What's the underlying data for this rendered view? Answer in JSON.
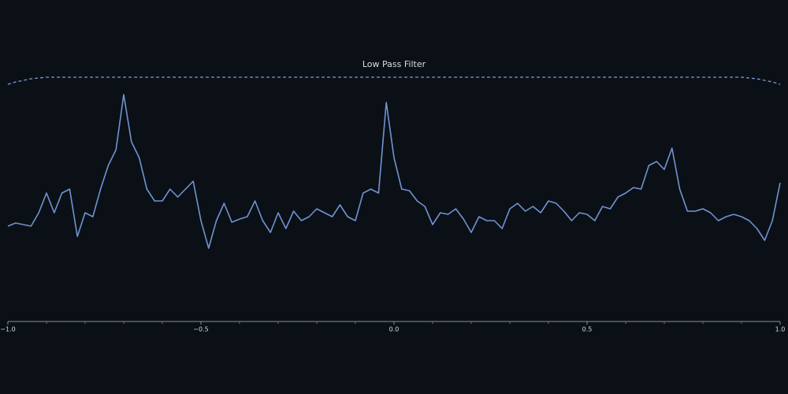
{
  "chart_data": {
    "type": "line",
    "title": "Low Pass Filter",
    "x": [
      -1,
      -0.98,
      -0.96,
      -0.94,
      -0.92,
      -0.9,
      -0.88,
      -0.86,
      -0.84,
      -0.82,
      -0.8,
      -0.78,
      -0.76,
      -0.74,
      -0.72,
      -0.7,
      -0.68,
      -0.66,
      -0.64,
      -0.62,
      -0.6,
      -0.58,
      -0.56,
      -0.54,
      -0.52,
      -0.5,
      -0.48,
      -0.46,
      -0.44,
      -0.42,
      -0.4,
      -0.38,
      -0.36,
      -0.34,
      -0.32,
      -0.3,
      -0.28,
      -0.26,
      -0.24,
      -0.22,
      -0.2,
      -0.18,
      -0.16,
      -0.14,
      -0.12,
      -0.1,
      -0.08,
      -0.06,
      -0.04,
      -0.02,
      0,
      0.02,
      0.04,
      0.06,
      0.08,
      0.1,
      0.12,
      0.14,
      0.16,
      0.18,
      0.2,
      0.22,
      0.24,
      0.26,
      0.28,
      0.3,
      0.32,
      0.34,
      0.36,
      0.38,
      0.4,
      0.42,
      0.44,
      0.46,
      0.48,
      0.5,
      0.52,
      0.54,
      0.56,
      0.58,
      0.6,
      0.62,
      0.64,
      0.66,
      0.68,
      0.7,
      0.72,
      0.74,
      0.76,
      0.78,
      0.8,
      0.82,
      0.84,
      0.86,
      0.88,
      0.9,
      0.92,
      0.94,
      0.96,
      0.98,
      1
    ],
    "series": [
      {
        "color": "#6f93d0",
        "dashed": false,
        "values": [
          121,
          125,
          123,
          121,
          138,
          163,
          138,
          163,
          168,
          108,
          138,
          133,
          168,
          198,
          218,
          288,
          228,
          208,
          168,
          153,
          153,
          168,
          158,
          168,
          178,
          128,
          93,
          128,
          150,
          126,
          130,
          133,
          153,
          128,
          113,
          138,
          118,
          140,
          128,
          133,
          143,
          138,
          133,
          148,
          133,
          128,
          163,
          168,
          163,
          278,
          208,
          168,
          166,
          153,
          146,
          123,
          138,
          136,
          143,
          130,
          113,
          133,
          128,
          128,
          118,
          143,
          150,
          140,
          146,
          138,
          153,
          150,
          140,
          128,
          138,
          136,
          128,
          146,
          143,
          158,
          163,
          170,
          168,
          198,
          203,
          193,
          220,
          168,
          140,
          140,
          143,
          138,
          128,
          133,
          136,
          133,
          128,
          118,
          103,
          128,
          176
        ]
      },
      {
        "color": "#7a9ad6",
        "dashed": true,
        "values": [
          301,
          304,
          306,
          308,
          309,
          310,
          310,
          310,
          310,
          310,
          310,
          310,
          310,
          310,
          310,
          310,
          310,
          310,
          310,
          310,
          310,
          310,
          310,
          310,
          310,
          310,
          310,
          310,
          310,
          310,
          310,
          310,
          310,
          310,
          310,
          310,
          310,
          310,
          310,
          310,
          310,
          310,
          310,
          310,
          310,
          310,
          310,
          310,
          310,
          310,
          310,
          310,
          310,
          310,
          310,
          310,
          310,
          310,
          310,
          310,
          310,
          310,
          310,
          310,
          310,
          310,
          310,
          310,
          310,
          310,
          310,
          310,
          310,
          310,
          310,
          310,
          310,
          310,
          310,
          310,
          310,
          310,
          310,
          310,
          310,
          310,
          310,
          310,
          310,
          310,
          310,
          310,
          310,
          310,
          310,
          310,
          309,
          308,
          306,
          304,
          301
        ]
      }
    ],
    "xlim": [
      -1,
      1
    ],
    "xticks": [
      {
        "value": -1,
        "label": "−1.0"
      },
      {
        "value": -0.5,
        "label": "−0.5"
      },
      {
        "value": 0,
        "label": "0.0"
      },
      {
        "value": 0.5,
        "label": "0.5"
      },
      {
        "value": 1,
        "label": "1.0"
      }
    ],
    "xminorticks": [
      -0.9,
      -0.8,
      -0.7,
      -0.6,
      -0.4,
      -0.3,
      -0.2,
      -0.1,
      0.1,
      0.2,
      0.3,
      0.4,
      0.6,
      0.7,
      0.8,
      0.9
    ],
    "ylim": [
      0,
      320
    ],
    "grid": false
  }
}
